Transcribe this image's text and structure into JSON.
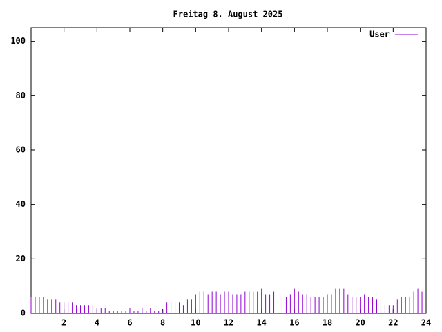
{
  "chart_data": {
    "type": "impulse",
    "title": "Freitag 8. August 2025",
    "series": [
      {
        "name": "User",
        "color": "#9400d3",
        "x": [
          0,
          0.25,
          0.5,
          0.75,
          1,
          1.25,
          1.5,
          1.75,
          2,
          2.25,
          2.5,
          2.75,
          3,
          3.25,
          3.5,
          3.75,
          4,
          4.25,
          4.5,
          4.75,
          5,
          5.25,
          5.5,
          5.75,
          6,
          6.25,
          6.5,
          6.75,
          7,
          7.25,
          7.5,
          7.75,
          8,
          8.25,
          8.5,
          8.75,
          9,
          9.25,
          9.5,
          9.75,
          10,
          10.25,
          10.5,
          10.75,
          11,
          11.25,
          11.5,
          11.75,
          12,
          12.25,
          12.5,
          12.75,
          13,
          13.25,
          13.5,
          13.75,
          14,
          14.25,
          14.5,
          14.75,
          15,
          15.25,
          15.5,
          15.75,
          16,
          16.25,
          16.5,
          16.75,
          17,
          17.25,
          17.5,
          17.75,
          18,
          18.25,
          18.5,
          18.75,
          19,
          19.25,
          19.5,
          19.75,
          20,
          20.25,
          20.5,
          20.75,
          21,
          21.25,
          21.5,
          21.75,
          22,
          22.25,
          22.5,
          22.75,
          23,
          23.25,
          23.5,
          23.75
        ],
        "values": [
          6,
          6,
          6,
          6,
          5,
          5,
          5,
          4,
          4,
          4,
          4,
          3,
          3,
          3,
          3,
          3,
          2,
          2,
          2,
          1,
          1,
          1,
          1,
          1,
          2,
          1,
          1,
          2,
          1,
          2,
          1,
          1,
          1,
          4,
          4,
          4,
          4,
          3,
          5,
          5,
          7,
          8,
          8,
          7,
          8,
          8,
          7,
          8,
          8,
          7,
          7,
          7,
          8,
          8,
          8,
          8,
          9,
          7,
          7,
          8,
          8,
          6,
          6,
          7,
          9,
          8,
          7,
          7,
          6,
          6,
          6,
          6,
          7,
          7,
          9,
          9,
          9,
          7,
          6,
          6,
          6,
          7,
          6,
          6,
          5,
          5,
          3,
          3,
          3,
          5,
          6,
          6,
          6,
          8,
          9,
          8
        ]
      }
    ],
    "xlim": [
      0,
      24
    ],
    "xticks": [
      2,
      4,
      6,
      8,
      10,
      12,
      14,
      16,
      18,
      20,
      22,
      24
    ],
    "ylim": [
      0,
      105
    ],
    "yticks": [
      0,
      20,
      40,
      60,
      80,
      100
    ],
    "legend": "top-right"
  }
}
